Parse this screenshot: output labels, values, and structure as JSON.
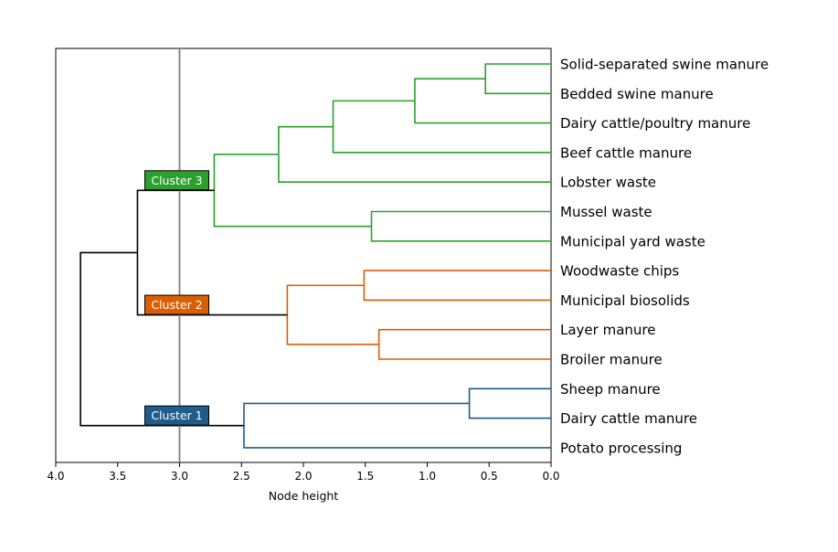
{
  "chart_data": {
    "type": "dendrogram",
    "orientation": "left",
    "xlabel": "Node height",
    "ylabel": "",
    "xlim": [
      4.0,
      0.0
    ],
    "x_ticks": [
      "4.0",
      "3.5",
      "3.0",
      "2.5",
      "2.0",
      "1.5",
      "1.0",
      "0.5",
      "0.0"
    ],
    "x_tick_values": [
      4.0,
      3.5,
      3.0,
      2.5,
      2.0,
      1.5,
      1.0,
      0.5,
      0.0
    ],
    "cut_line": {
      "height": 3.0,
      "color": "#808080"
    },
    "leaves": [
      "Solid-separated swine manure",
      "Bedded swine manure",
      "Dairy cattle/poultry manure",
      "Beef cattle manure",
      "Lobster waste",
      "Mussel waste",
      "Municipal yard waste",
      "Woodwaste chips",
      "Municipal biosolids",
      "Layer manure",
      "Broiler manure",
      "Sheep manure",
      "Dairy cattle manure",
      "Potato processing"
    ],
    "merges": [
      {
        "id": "n1",
        "children": [
          "Solid-separated swine manure",
          "Bedded swine manure"
        ],
        "height": 0.53,
        "color": "#2ca02c"
      },
      {
        "id": "n2",
        "children": [
          "n1",
          "Dairy cattle/poultry manure"
        ],
        "height": 1.1,
        "color": "#2ca02c"
      },
      {
        "id": "n3",
        "children": [
          "n2",
          "Beef cattle manure"
        ],
        "height": 1.76,
        "color": "#2ca02c"
      },
      {
        "id": "n4",
        "children": [
          "n3",
          "Lobster waste"
        ],
        "height": 2.2,
        "color": "#2ca02c"
      },
      {
        "id": "n5",
        "children": [
          "Mussel waste",
          "Municipal yard waste"
        ],
        "height": 1.45,
        "color": "#2ca02c"
      },
      {
        "id": "n6",
        "children": [
          "n4",
          "n5"
        ],
        "height": 2.72,
        "color": "#2ca02c"
      },
      {
        "id": "n7",
        "children": [
          "Woodwaste chips",
          "Municipal biosolids"
        ],
        "height": 1.51,
        "color": "#d95f02"
      },
      {
        "id": "n8",
        "children": [
          "Layer manure",
          "Broiler manure"
        ],
        "height": 1.39,
        "color": "#d95f02"
      },
      {
        "id": "n9",
        "children": [
          "n7",
          "n8"
        ],
        "height": 2.13,
        "color": "#d95f02"
      },
      {
        "id": "n10",
        "children": [
          "Sheep manure",
          "Dairy cattle manure"
        ],
        "height": 0.66,
        "color": "#1f5c8b"
      },
      {
        "id": "n11",
        "children": [
          "n10",
          "Potato processing"
        ],
        "height": 2.48,
        "color": "#1f5c8b"
      },
      {
        "id": "n12",
        "children": [
          "n6",
          "n9"
        ],
        "height": 3.34,
        "color": "#000000"
      },
      {
        "id": "n13",
        "children": [
          "n12",
          "n11"
        ],
        "height": 3.8,
        "color": "#000000"
      }
    ],
    "clusters": [
      {
        "label": "Cluster 3",
        "node": "n6",
        "color": "#2ca02c"
      },
      {
        "label": "Cluster 2",
        "node": "n9",
        "color": "#d95f02"
      },
      {
        "label": "Cluster 1",
        "node": "n11",
        "color": "#1f5c8b"
      }
    ]
  }
}
